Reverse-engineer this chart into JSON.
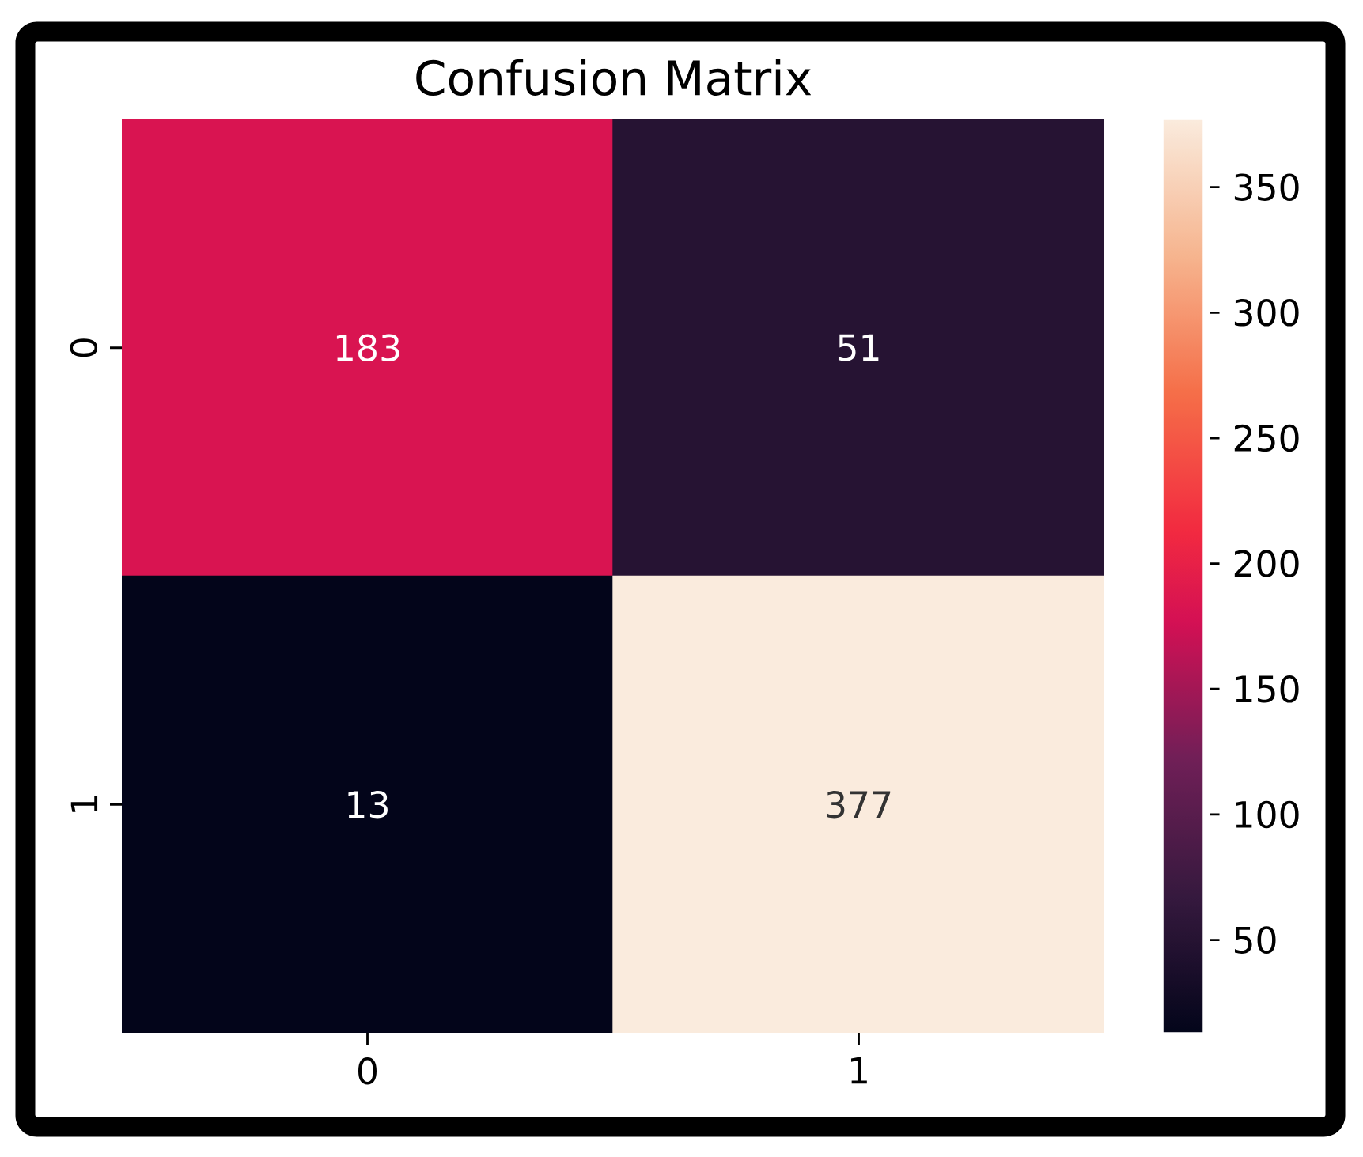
{
  "chart_data": {
    "type": "heatmap",
    "title": "Confusion Matrix",
    "categories": [
      "0",
      "1"
    ],
    "y_categories": [
      "0",
      "1"
    ],
    "cells": [
      [
        183,
        51
      ],
      [
        13,
        377
      ]
    ],
    "clim": [
      13,
      377
    ],
    "cticks": [
      50,
      100,
      150,
      200,
      250,
      300,
      350
    ],
    "data_labels": true
  }
}
